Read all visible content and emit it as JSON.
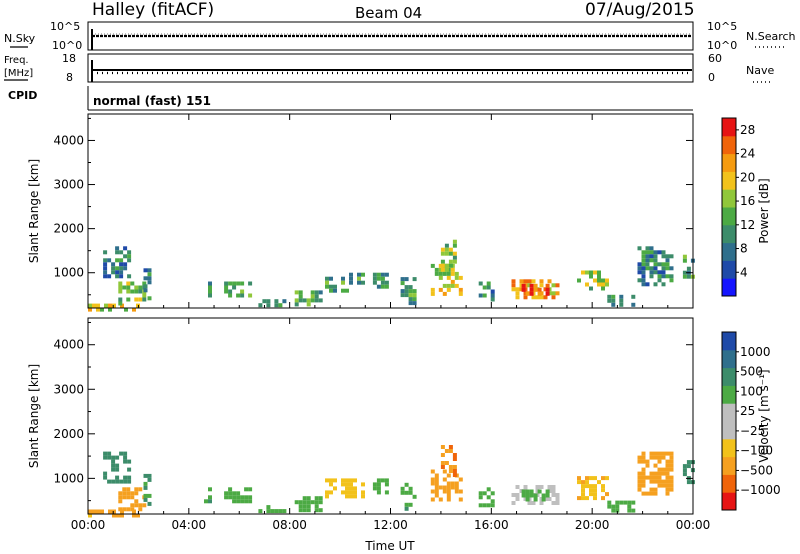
{
  "header": {
    "station": "Halley (fitACF)",
    "beam": "Beam 04",
    "date": "07/Aug/2015"
  },
  "strips": {
    "nsky_label": "N.Sky",
    "nsky_ticks": [
      "10^5",
      "10^0"
    ],
    "nsearch_label": "N.Search",
    "nsearch_ticks": [
      "10^5",
      "10^0"
    ],
    "freq_label_1": "Freq.",
    "freq_label_2": "[MHz]",
    "freq_ticks": [
      "18",
      "8"
    ],
    "nave_label": "Nave",
    "nave_ticks": [
      "60",
      "0"
    ],
    "cpid_label": "CPID",
    "cpid_value": "normal (fast) 151"
  },
  "colors": {
    "power_scale": [
      "#1515ff",
      "#1f4aa8",
      "#2f6f8c",
      "#3c8c6a",
      "#4caa44",
      "#90c73a",
      "#f2c21b",
      "#f59b10",
      "#f0640a",
      "#e61414"
    ],
    "velocity_scale": [
      "#e61414",
      "#f0640a",
      "#f5a020",
      "#f2c21b",
      "#bfbfbf",
      "#bfbfbf",
      "#4caa44",
      "#3c8c6a",
      "#2f6f8c",
      "#1f4aa8"
    ]
  },
  "chart_data": [
    {
      "type": "heatmap",
      "name": "power",
      "xlabel": "",
      "ylabel": "Slant Range [km]",
      "x_ticks": [
        "00:00",
        "04:00",
        "08:00",
        "12:00",
        "16:00",
        "20:00",
        "00:00"
      ],
      "x_tick_hours": [
        0,
        4,
        8,
        12,
        16,
        20,
        24
      ],
      "y_ticks": [
        1000,
        2000,
        3000,
        4000
      ],
      "ylim": [
        200,
        4600
      ],
      "xlim": [
        0,
        24
      ],
      "colorbar": {
        "label": "Power [dB]",
        "ticks": [
          "4",
          "8",
          "12",
          "16",
          "20",
          "24",
          "28"
        ],
        "range": [
          0,
          30
        ]
      },
      "patches": [
        {
          "t0": 0.0,
          "t1": 2.0,
          "r0": 200,
          "r1": 300,
          "v": 18
        },
        {
          "t0": 0.6,
          "t1": 1.6,
          "r0": 900,
          "r1": 1600,
          "v": 8
        },
        {
          "t0": 1.2,
          "t1": 2.2,
          "r0": 300,
          "r1": 800,
          "v": 14
        },
        {
          "t0": 2.2,
          "t1": 2.5,
          "r0": 400,
          "r1": 1100,
          "v": 9
        },
        {
          "t0": 4.6,
          "t1": 4.8,
          "r0": 500,
          "r1": 800,
          "v": 10
        },
        {
          "t0": 5.4,
          "t1": 6.5,
          "r0": 500,
          "r1": 800,
          "v": 12
        },
        {
          "t0": 6.6,
          "t1": 7.8,
          "r0": 250,
          "r1": 400,
          "v": 10
        },
        {
          "t0": 8.2,
          "t1": 9.2,
          "r0": 300,
          "r1": 600,
          "v": 12
        },
        {
          "t0": 9.4,
          "t1": 10.9,
          "r0": 600,
          "r1": 1000,
          "v": 11
        },
        {
          "t0": 11.3,
          "t1": 11.8,
          "r0": 700,
          "r1": 1000,
          "v": 10
        },
        {
          "t0": 12.4,
          "t1": 13.0,
          "r0": 300,
          "r1": 900,
          "v": 12
        },
        {
          "t0": 13.6,
          "t1": 14.8,
          "r0": 500,
          "r1": 1200,
          "v": 18
        },
        {
          "t0": 14.0,
          "t1": 14.6,
          "r0": 1100,
          "r1": 1750,
          "v": 14
        },
        {
          "t0": 15.5,
          "t1": 16.0,
          "r0": 400,
          "r1": 800,
          "v": 9
        },
        {
          "t0": 16.8,
          "t1": 18.6,
          "r0": 450,
          "r1": 850,
          "v": 22
        },
        {
          "t0": 17.2,
          "t1": 18.2,
          "r0": 500,
          "r1": 750,
          "v": 27
        },
        {
          "t0": 19.4,
          "t1": 20.6,
          "r0": 600,
          "r1": 1050,
          "v": 16
        },
        {
          "t0": 20.6,
          "t1": 21.6,
          "r0": 250,
          "r1": 500,
          "v": 10
        },
        {
          "t0": 21.8,
          "t1": 23.2,
          "r0": 700,
          "r1": 1600,
          "v": 10
        },
        {
          "t0": 23.6,
          "t1": 24.0,
          "r0": 900,
          "r1": 1500,
          "v": 12
        }
      ]
    },
    {
      "type": "heatmap",
      "name": "velocity",
      "xlabel": "Time UT",
      "ylabel": "Slant Range [km]",
      "x_ticks": [
        "00:00",
        "04:00",
        "08:00",
        "12:00",
        "16:00",
        "20:00",
        "00:00"
      ],
      "x_tick_hours": [
        0,
        4,
        8,
        12,
        16,
        20,
        24
      ],
      "y_ticks": [
        1000,
        2000,
        3000,
        4000
      ],
      "ylim": [
        200,
        4600
      ],
      "xlim": [
        0,
        24
      ],
      "colorbar": {
        "label": "Velocity [m s⁻¹]",
        "ticks": [
          "1000",
          "500",
          "100",
          "25",
          "−25",
          "−100",
          "−500",
          "−1000"
        ],
        "range": [
          -1200,
          1200
        ]
      },
      "patches": [
        {
          "t0": 0.0,
          "t1": 2.0,
          "r0": 200,
          "r1": 300,
          "v": -150
        },
        {
          "t0": 0.6,
          "t1": 1.6,
          "r0": 900,
          "r1": 1600,
          "v": 300
        },
        {
          "t0": 1.2,
          "t1": 2.2,
          "r0": 300,
          "r1": 800,
          "v": -200
        },
        {
          "t0": 2.2,
          "t1": 2.5,
          "r0": 400,
          "r1": 1100,
          "v": 150
        },
        {
          "t0": 4.6,
          "t1": 4.8,
          "r0": 500,
          "r1": 800,
          "v": 80
        },
        {
          "t0": 5.4,
          "t1": 6.5,
          "r0": 500,
          "r1": 800,
          "v": 60
        },
        {
          "t0": 6.6,
          "t1": 7.8,
          "r0": 250,
          "r1": 400,
          "v": 50
        },
        {
          "t0": 8.2,
          "t1": 9.2,
          "r0": 300,
          "r1": 600,
          "v": 60
        },
        {
          "t0": 9.4,
          "t1": 10.9,
          "r0": 600,
          "r1": 1000,
          "v": -60
        },
        {
          "t0": 11.3,
          "t1": 11.8,
          "r0": 700,
          "r1": 1000,
          "v": 60
        },
        {
          "t0": 12.4,
          "t1": 13.0,
          "r0": 300,
          "r1": 900,
          "v": 80
        },
        {
          "t0": 13.6,
          "t1": 14.8,
          "r0": 500,
          "r1": 1200,
          "v": -300
        },
        {
          "t0": 14.0,
          "t1": 14.6,
          "r0": 1100,
          "r1": 1750,
          "v": -400
        },
        {
          "t0": 15.5,
          "t1": 16.0,
          "r0": 400,
          "r1": 800,
          "v": 60
        },
        {
          "t0": 16.8,
          "t1": 18.6,
          "r0": 450,
          "r1": 850,
          "v": 10
        },
        {
          "t0": 17.2,
          "t1": 18.2,
          "r0": 500,
          "r1": 750,
          "v": 60
        },
        {
          "t0": 19.4,
          "t1": 20.6,
          "r0": 600,
          "r1": 1050,
          "v": -80
        },
        {
          "t0": 20.6,
          "t1": 21.6,
          "r0": 250,
          "r1": 500,
          "v": 40
        },
        {
          "t0": 21.8,
          "t1": 23.2,
          "r0": 700,
          "r1": 1600,
          "v": -300
        },
        {
          "t0": 23.6,
          "t1": 24.0,
          "r0": 900,
          "r1": 1500,
          "v": 300
        }
      ]
    }
  ]
}
